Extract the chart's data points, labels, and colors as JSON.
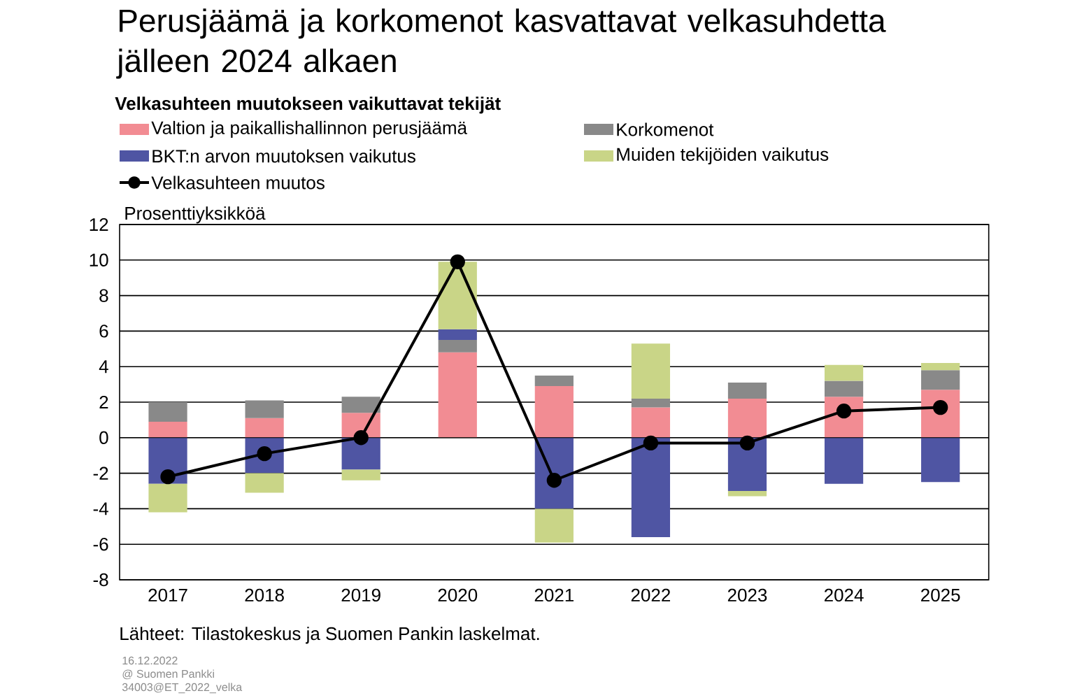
{
  "chart_data": {
    "type": "bar",
    "stacked": true,
    "title": "Perusjäämä ja korkomenot kasvattavat velkasuhdetta jälleen 2024 alkaen",
    "subtitle": "Velkasuhteen muutokseen vaikuttavat tekijät",
    "ylabel": "Prosenttiyksikköä",
    "categories": [
      "2017",
      "2018",
      "2019",
      "2020",
      "2021",
      "2022",
      "2023",
      "2024",
      "2025"
    ],
    "series": [
      {
        "name": "Valtion ja paikallishallinnon perusjäämä",
        "color": "#f28c93",
        "values": [
          0.9,
          1.1,
          1.4,
          4.8,
          2.9,
          1.7,
          2.2,
          2.3,
          2.7
        ]
      },
      {
        "name": "Korkomenot",
        "color": "#898989",
        "values": [
          1.1,
          1.0,
          0.9,
          0.7,
          0.6,
          0.5,
          0.9,
          0.9,
          1.1
        ]
      },
      {
        "name": "BKT:n arvon muutoksen vaikutus",
        "color": "#4f55a3",
        "values": [
          -2.6,
          -2.0,
          -1.8,
          0.6,
          -4.0,
          -5.6,
          -3.0,
          -2.6,
          -2.5
        ]
      },
      {
        "name": "Muiden tekijöiden vaikutus",
        "color": "#c9d587",
        "values": [
          -1.6,
          -1.1,
          -0.6,
          3.8,
          -1.9,
          3.1,
          -0.3,
          0.9,
          0.4
        ]
      },
      {
        "name": "Velkasuhteen muutos",
        "type": "line",
        "color": "#000000",
        "marker": "circle",
        "values": [
          -2.2,
          -0.9,
          0.0,
          9.9,
          -2.4,
          -0.3,
          -0.3,
          1.5,
          1.7
        ]
      }
    ],
    "ylim": [
      -8,
      12
    ],
    "yticks": [
      -8,
      -6,
      -4,
      -2,
      0,
      2,
      4,
      6,
      8,
      10,
      12
    ],
    "grid": "y",
    "legend": "top",
    "annotations": [
      "Lähteet: Tilastokeskus ja Suomen Pankin laskelmat.",
      "16.12.2022",
      "@ Suomen Pankki",
      "34003@ET_2022_velka"
    ]
  }
}
